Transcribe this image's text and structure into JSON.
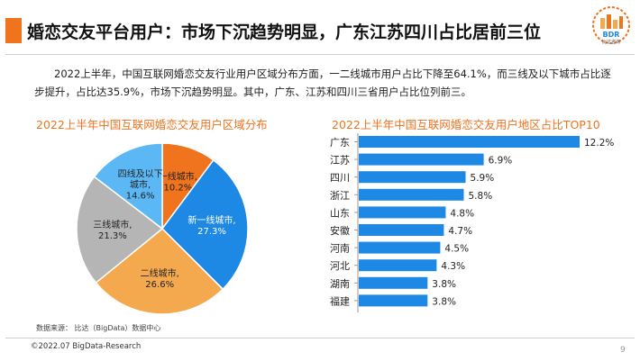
{
  "header": {
    "title": "婚恋交友平台用户：市场下沉趋势明显，广东江苏四川占比居前三位",
    "logo_text": "BDR",
    "logo_subtext": "比达咨询",
    "accent": "#f0731e"
  },
  "intro": "2022上半年，中国互联网婚恋交友行业用户区域分布方面，一二线城市用户占比下降至64.1%，而三线及以下城市占比逐步提升，占比达35.9%，市场下沉趋势明显。其中，广东、江苏和四川三省用户占比位列前三。",
  "footer": {
    "source": "数据来源： 比达（BigData）数据中心",
    "copyright": "©2022.07 BigData-Research",
    "page": "9"
  },
  "chart_data": [
    {
      "type": "pie",
      "title": "2022上半年中国互联网婚恋交友用户区域分布",
      "slices": [
        {
          "label": "一线城市,",
          "value": 10.2,
          "display": "10.2%",
          "color": "#f0731e",
          "text_color": "#222"
        },
        {
          "label": "新一线城市,",
          "value": 27.3,
          "display": "27.3%",
          "color": "#1e88e5",
          "text_color": "#ffffff"
        },
        {
          "label": "二线城市,",
          "value": 26.6,
          "display": "26.6%",
          "color": "#f5a94f",
          "text_color": "#222"
        },
        {
          "label": "三线城市,",
          "value": 21.3,
          "display": "21.3%",
          "color": "#b5b5b5",
          "text_color": "#222"
        },
        {
          "label": "四线及以下",
          "label2": "城市,",
          "value": 14.6,
          "display": "14.6%",
          "color": "#5cb8f5",
          "text_color": "#222"
        }
      ]
    },
    {
      "type": "bar",
      "orientation": "horizontal",
      "title": "2022上半年中国互联网婚恋交友用户地区占比TOP10",
      "color": "#1e88e5",
      "categories": [
        "广东",
        "江苏",
        "四川",
        "浙江",
        "山东",
        "安徽",
        "河南",
        "河北",
        "湖南",
        "福建"
      ],
      "values": [
        12.2,
        6.9,
        5.9,
        5.8,
        4.8,
        4.7,
        4.5,
        4.3,
        3.8,
        3.8
      ],
      "labels": [
        "12.2%",
        "6.9%",
        "5.9%",
        "5.8%",
        "4.8%",
        "4.7%",
        "4.5%",
        "4.3%",
        "3.8%",
        "3.8%"
      ]
    }
  ]
}
